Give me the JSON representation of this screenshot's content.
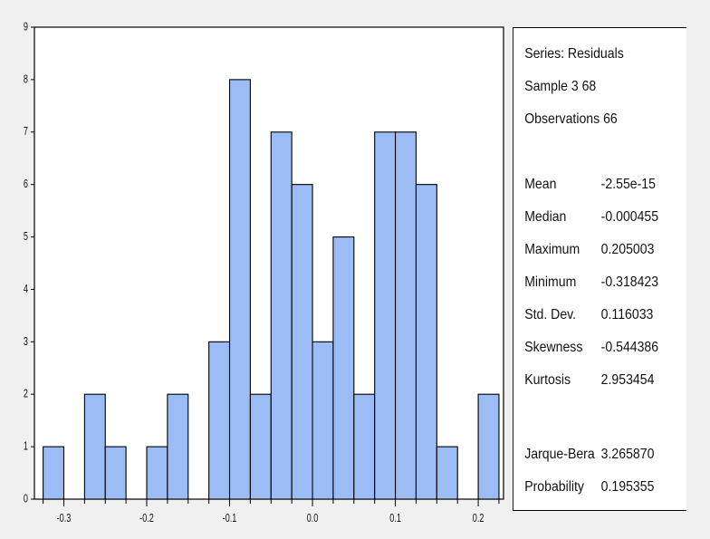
{
  "chart_data": {
    "type": "bar",
    "subtype": "histogram",
    "bins": [
      {
        "x0": -0.325,
        "x1": -0.3,
        "count": 1
      },
      {
        "x0": -0.3,
        "x1": -0.275,
        "count": 0
      },
      {
        "x0": -0.275,
        "x1": -0.25,
        "count": 2
      },
      {
        "x0": -0.25,
        "x1": -0.225,
        "count": 1
      },
      {
        "x0": -0.225,
        "x1": -0.2,
        "count": 0
      },
      {
        "x0": -0.2,
        "x1": -0.175,
        "count": 1
      },
      {
        "x0": -0.175,
        "x1": -0.15,
        "count": 2
      },
      {
        "x0": -0.15,
        "x1": -0.125,
        "count": 0
      },
      {
        "x0": -0.125,
        "x1": -0.1,
        "count": 3
      },
      {
        "x0": -0.1,
        "x1": -0.075,
        "count": 8
      },
      {
        "x0": -0.075,
        "x1": -0.05,
        "count": 2
      },
      {
        "x0": -0.05,
        "x1": -0.025,
        "count": 7
      },
      {
        "x0": -0.025,
        "x1": 0.0,
        "count": 6
      },
      {
        "x0": 0.0,
        "x1": 0.025,
        "count": 3
      },
      {
        "x0": 0.025,
        "x1": 0.05,
        "count": 5
      },
      {
        "x0": 0.05,
        "x1": 0.075,
        "count": 2
      },
      {
        "x0": 0.075,
        "x1": 0.1,
        "count": 7
      },
      {
        "x0": 0.1,
        "x1": 0.125,
        "count": 7
      },
      {
        "x0": 0.125,
        "x1": 0.15,
        "count": 6
      },
      {
        "x0": 0.15,
        "x1": 0.175,
        "count": 1
      },
      {
        "x0": 0.175,
        "x1": 0.2,
        "count": 0
      },
      {
        "x0": 0.2,
        "x1": 0.225,
        "count": 2
      }
    ],
    "xlim": [
      -0.3355,
      0.2305
    ],
    "ylim": [
      0,
      9
    ],
    "xticks": [
      -0.3,
      -0.2,
      -0.1,
      0.0,
      0.1,
      0.2
    ],
    "xtick_labels": [
      "-0.3",
      "-0.2",
      "-0.1",
      "0.0",
      "0.1",
      "0.2"
    ],
    "yticks": [
      0,
      1,
      2,
      3,
      4,
      5,
      6,
      7,
      8,
      9
    ],
    "ytick_labels": [
      "0",
      "1",
      "2",
      "3",
      "4",
      "5",
      "6",
      "7",
      "8",
      "9"
    ],
    "bar_color": "#9bbcf4",
    "grid": false
  },
  "stats": {
    "series_label": "Series: Residuals",
    "sample_label": "Sample 3 68",
    "observations_label": "Observations 66",
    "rows": [
      {
        "label": "Mean",
        "value": "-2.55e-15"
      },
      {
        "label": "Median",
        "value": "-0.000455"
      },
      {
        "label": "Maximum",
        "value": "0.205003"
      },
      {
        "label": "Minimum",
        "value": "-0.318423"
      },
      {
        "label": "Std. Dev.",
        "value": "0.116033"
      },
      {
        "label": "Skewness",
        "value": "-0.544386"
      },
      {
        "label": "Kurtosis",
        "value": "2.953454"
      }
    ],
    "test_rows": [
      {
        "label": "Jarque-Bera",
        "value": "3.265870"
      },
      {
        "label": "Probability",
        "value": "0.195355"
      }
    ]
  }
}
